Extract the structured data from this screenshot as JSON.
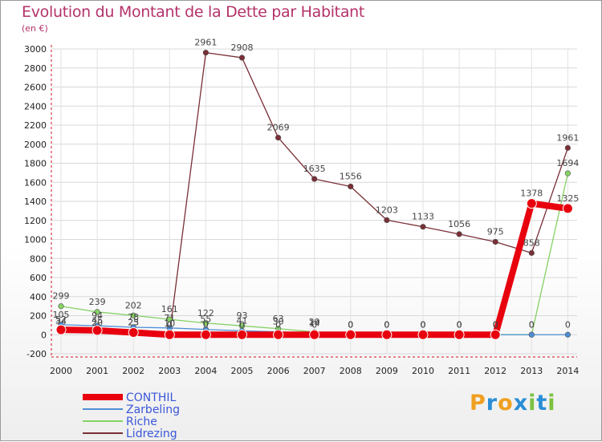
{
  "header": {
    "title": "Evolution du Montant de la Dette par Habitant",
    "unit": "(en €)"
  },
  "brand": {
    "chars": [
      "P",
      "r",
      "o",
      "x",
      "i",
      "t",
      "i"
    ],
    "colors": [
      "#f0a020",
      "#2a8ed6",
      "#f0a020",
      "#2a8ed6",
      "#7cc142",
      "#2a8ed6",
      "#7cc142"
    ]
  },
  "chart_data": {
    "type": "line",
    "title": "Evolution du Montant de la Dette par Habitant",
    "ylabel": "(en €)",
    "xlabel": "",
    "ylim": [
      -200,
      3000
    ],
    "yticks": [
      -200,
      0,
      200,
      400,
      600,
      800,
      1000,
      1200,
      1400,
      1600,
      1800,
      2000,
      2200,
      2400,
      2600,
      2800,
      3000
    ],
    "categories": [
      "2000",
      "2001",
      "2002",
      "2003",
      "2004",
      "2005",
      "2006",
      "2007",
      "2008",
      "2009",
      "2010",
      "2011",
      "2012",
      "2013",
      "2014"
    ],
    "legend_position": "bottom-left",
    "series": [
      {
        "name": "Lidrezing",
        "color": "#7a2f36",
        "values": [
          34,
          20,
          25,
          10,
          2961,
          2908,
          2069,
          1635,
          1556,
          1203,
          1133,
          1056,
          975,
          858,
          1961
        ],
        "labels": [
          "34",
          "20",
          "25",
          "10",
          "2961",
          "2908",
          "2069",
          "1635",
          "1556",
          "1203",
          "1133",
          "1056",
          "975",
          "858",
          "1961"
        ]
      },
      {
        "name": "Riche",
        "color": "#84d264",
        "values": [
          299,
          239,
          202,
          161,
          122,
          93,
          63,
          29,
          0,
          0,
          0,
          0,
          0,
          0,
          1694
        ],
        "labels": [
          "299",
          "239",
          "202",
          "161",
          "122",
          "93",
          "63",
          "29",
          "0",
          "0",
          "0",
          "0",
          "0",
          "0",
          "1694"
        ]
      },
      {
        "name": "Zarbeling",
        "color": "#4d8ed6",
        "values": [
          105,
          94,
          78,
          71,
          55,
          41,
          30,
          14,
          0,
          0,
          0,
          0,
          0,
          0,
          0
        ],
        "labels": [
          "105",
          "94",
          "78",
          "71",
          "55",
          "41",
          "30",
          "14",
          "0",
          "0",
          "0",
          "0",
          "0",
          "0",
          "0"
        ]
      },
      {
        "name": "CONTHIL",
        "color": "#e8000e",
        "values": [
          52,
          45,
          23,
          0,
          0,
          0,
          0,
          0,
          0,
          0,
          0,
          0,
          0,
          1378,
          1325
        ],
        "labels": [
          "52",
          "45",
          "23",
          "0",
          "0",
          "0",
          "0",
          "0",
          "0",
          "0",
          "0",
          "0",
          "0",
          "1378",
          "1325"
        ]
      }
    ],
    "legend": [
      {
        "name": "CONTHIL",
        "color": "#e8000e",
        "text_color": "#3a57d8"
      },
      {
        "name": "Zarbeling",
        "color": "#4d8ed6",
        "text_color": "#3a57d8"
      },
      {
        "name": "Riche",
        "color": "#84d264",
        "text_color": "#3a57d8"
      },
      {
        "name": "Lidrezing",
        "color": "#7a2f36",
        "text_color": "#3a57d8"
      }
    ]
  }
}
